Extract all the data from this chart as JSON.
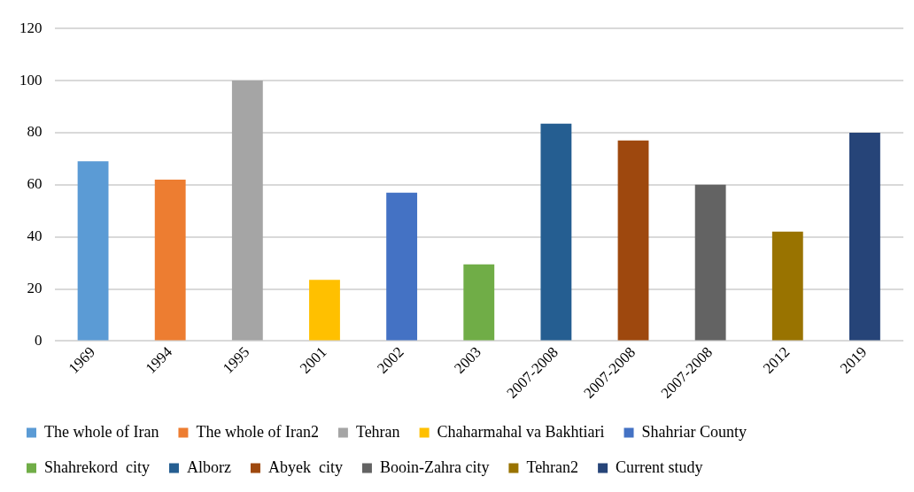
{
  "chart_data": {
    "type": "bar",
    "categories": [
      "1969",
      "1994",
      "1995",
      "2001",
      "2002",
      "2003",
      "2007-2008",
      "2007-2008",
      "2007-2008",
      "2012",
      "2019"
    ],
    "series": [
      {
        "name": "The whole of Iran",
        "color": "#5b9bd5",
        "values": [
          69,
          null,
          null,
          null,
          null,
          null,
          null,
          null,
          null,
          null,
          null
        ]
      },
      {
        "name": "The whole of Iran2",
        "color": "#ed7d31",
        "values": [
          null,
          62,
          null,
          null,
          null,
          null,
          null,
          null,
          null,
          null,
          null
        ]
      },
      {
        "name": "Tehran",
        "color": "#a5a5a5",
        "values": [
          null,
          null,
          100,
          null,
          null,
          null,
          null,
          null,
          null,
          null,
          null
        ]
      },
      {
        "name": "Chaharmahal va Bakhtiari",
        "color": "#ffc000",
        "values": [
          null,
          null,
          null,
          23.5,
          null,
          null,
          null,
          null,
          null,
          null,
          null
        ]
      },
      {
        "name": "Shahriar County",
        "color": "#4472c4",
        "values": [
          null,
          null,
          null,
          null,
          57,
          null,
          null,
          null,
          null,
          null,
          null
        ]
      },
      {
        "name": "Shahrekord  city",
        "color": "#70ad47",
        "values": [
          null,
          null,
          null,
          null,
          null,
          29.5,
          null,
          null,
          null,
          null,
          null
        ]
      },
      {
        "name": "Alborz",
        "color": "#255e91",
        "values": [
          null,
          null,
          null,
          null,
          null,
          null,
          83.5,
          null,
          null,
          null,
          null
        ]
      },
      {
        "name": "Abyek  city",
        "color": "#9e480e",
        "values": [
          null,
          null,
          null,
          null,
          null,
          null,
          null,
          77,
          null,
          null,
          null
        ]
      },
      {
        "name": "Booin-Zahra city",
        "color": "#636363",
        "values": [
          null,
          null,
          null,
          null,
          null,
          null,
          null,
          null,
          60,
          null,
          null
        ]
      },
      {
        "name": "Tehran2",
        "color": "#997300",
        "values": [
          null,
          null,
          null,
          null,
          null,
          null,
          null,
          null,
          null,
          42,
          null
        ]
      },
      {
        "name": "Current study",
        "color": "#264478",
        "values": [
          null,
          null,
          null,
          null,
          null,
          null,
          null,
          null,
          null,
          null,
          80
        ]
      }
    ],
    "ylim": [
      0,
      120
    ],
    "yticks": [
      0,
      20,
      40,
      60,
      80,
      100,
      120
    ],
    "grid": "y",
    "legend": "bottom"
  }
}
